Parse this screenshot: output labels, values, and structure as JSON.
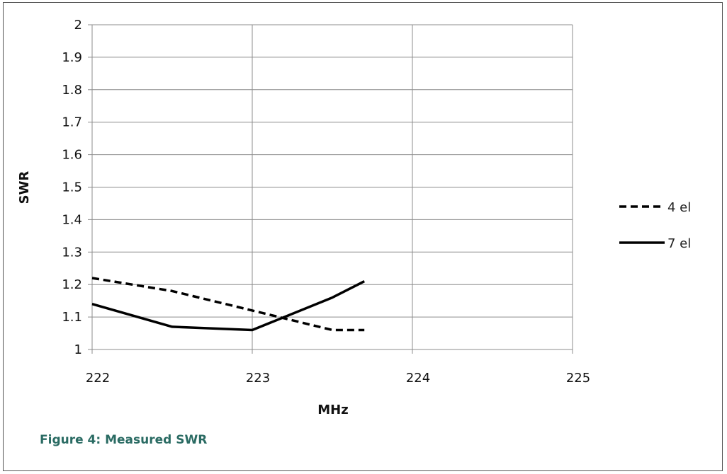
{
  "caption": "Figure 4: Measured SWR",
  "chart_data": {
    "type": "line",
    "title": "",
    "xlabel": "MHz",
    "ylabel": "SWR",
    "xlim": [
      222,
      225
    ],
    "ylim": [
      1,
      2
    ],
    "x_ticks": [
      222,
      223,
      224,
      225
    ],
    "y_ticks": [
      1,
      1.1,
      1.2,
      1.3,
      1.4,
      1.5,
      1.6,
      1.7,
      1.8,
      1.9,
      2
    ],
    "grid": true,
    "legend_position": "right",
    "series": [
      {
        "name": "4 el",
        "style": "dashed",
        "color": "#000000",
        "points": [
          [
            222,
            1.22
          ],
          [
            222.5,
            1.18
          ],
          [
            223,
            1.12
          ],
          [
            223.5,
            1.06
          ],
          [
            223.7,
            1.06
          ]
        ]
      },
      {
        "name": "7 el",
        "style": "solid",
        "color": "#000000",
        "points": [
          [
            222,
            1.14
          ],
          [
            222.5,
            1.07
          ],
          [
            223,
            1.06
          ],
          [
            223.5,
            1.16
          ],
          [
            223.7,
            1.21
          ]
        ]
      }
    ]
  }
}
